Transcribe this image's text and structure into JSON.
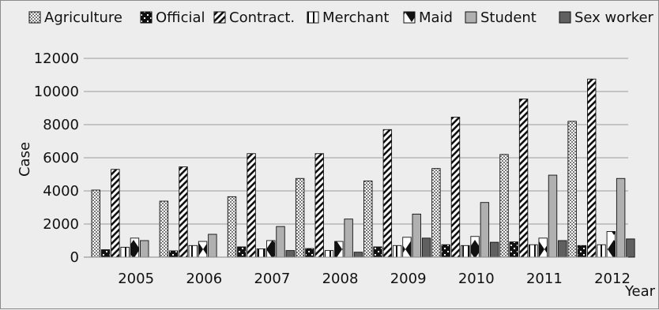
{
  "chart_data": {
    "type": "bar",
    "title": "",
    "xlabel": "Year",
    "ylabel": "Case",
    "ylim": [
      0,
      12000
    ],
    "yticks": [
      0,
      2000,
      4000,
      6000,
      8000,
      10000,
      12000
    ],
    "grid": true,
    "legend_position": "top",
    "categories": [
      "2005",
      "2006",
      "2007",
      "2008",
      "2009",
      "2010",
      "2011",
      "2012"
    ],
    "series": [
      {
        "name": "Agriculture",
        "pattern": "dots",
        "values": [
          4050,
          3380,
          3650,
          4750,
          4600,
          5350,
          6200,
          8200
        ]
      },
      {
        "name": "Official",
        "pattern": "checker",
        "values": [
          450,
          380,
          620,
          520,
          620,
          750,
          920,
          700
        ]
      },
      {
        "name": "Contract.",
        "pattern": "diagonal",
        "values": [
          5300,
          5450,
          6250,
          6250,
          7700,
          8450,
          9550,
          10750
        ]
      },
      {
        "name": "Merchant",
        "pattern": "vertical",
        "values": [
          600,
          700,
          500,
          400,
          700,
          700,
          750,
          750
        ]
      },
      {
        "name": "Maid",
        "pattern": "diamond",
        "values": [
          1150,
          950,
          1000,
          950,
          1200,
          1250,
          1150,
          1550
        ]
      },
      {
        "name": "Student",
        "pattern": "solid-light",
        "values": [
          1000,
          1380,
          1850,
          2300,
          2600,
          3300,
          4950,
          4750
        ]
      },
      {
        "name": "Sex worker",
        "pattern": "solid-dark",
        "values": [
          0,
          0,
          400,
          300,
          1150,
          900,
          1000,
          1100
        ]
      }
    ],
    "colors": {
      "light_gray": "#b0b0b0",
      "dark_gray": "#606060",
      "grid": "#9a9a9a",
      "background": "#ededed"
    }
  }
}
